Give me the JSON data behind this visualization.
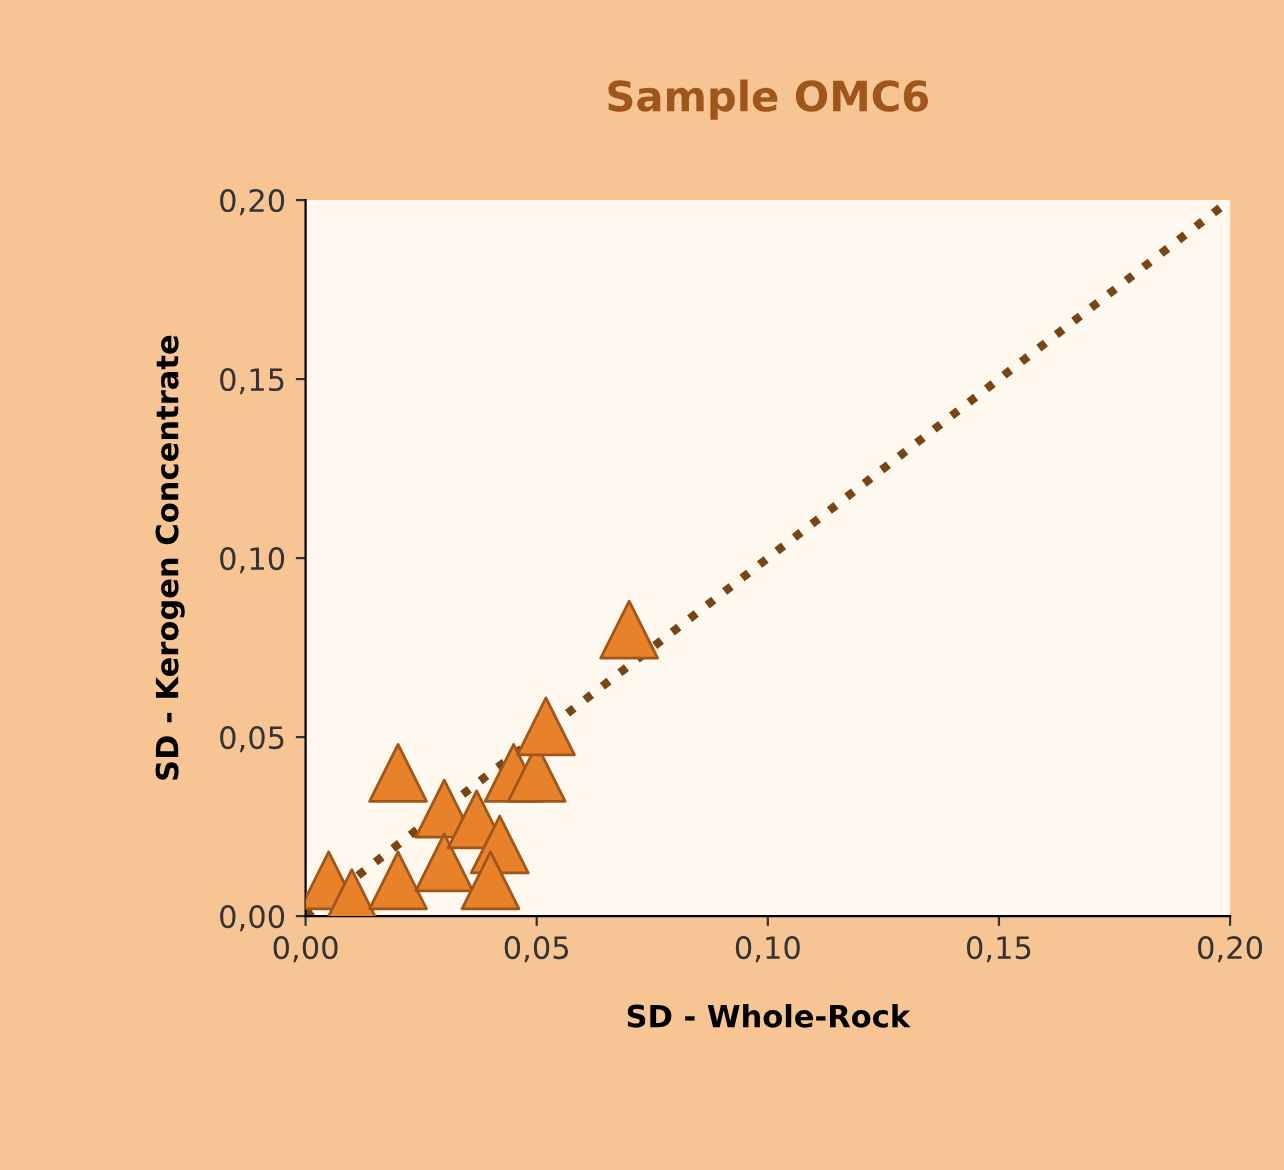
{
  "chart_data": {
    "type": "scatter",
    "title": "Sample OMC6",
    "xlabel": "SD - Whole-Rock",
    "ylabel": "SD - Kerogen Concentrate",
    "xlim": [
      0,
      0.2
    ],
    "ylim": [
      0,
      0.2
    ],
    "xticks": [
      {
        "value": 0,
        "label": "0,00"
      },
      {
        "value": 0.05,
        "label": "0,05"
      },
      {
        "value": 0.1,
        "label": "0,10"
      },
      {
        "value": 0.15,
        "label": "0,15"
      },
      {
        "value": 0.2,
        "label": "0,20"
      }
    ],
    "yticks": [
      {
        "value": 0,
        "label": "0,00"
      },
      {
        "value": 0.05,
        "label": "0,05"
      },
      {
        "value": 0.1,
        "label": "0,10"
      },
      {
        "value": 0.15,
        "label": "0,15"
      },
      {
        "value": 0.2,
        "label": "0,20"
      }
    ],
    "grid": false,
    "legend": false,
    "marker": "triangle",
    "series": [
      {
        "type": "line",
        "color": "#7a4514",
        "line_style": "dotted",
        "marker": "none",
        "x": [
          0,
          0.2
        ],
        "values": [
          0,
          0.2
        ]
      },
      {
        "color": "#e8822a",
        "x": [
          0.005,
          0.01,
          0.02,
          0.02,
          0.03,
          0.03,
          0.037,
          0.042,
          0.04,
          0.045,
          0.05,
          0.052,
          0.07
        ],
        "values": [
          0.01,
          0.005,
          0.04,
          0.01,
          0.03,
          0.015,
          0.027,
          0.02,
          0.01,
          0.04,
          0.04,
          0.053,
          0.08
        ]
      }
    ]
  }
}
